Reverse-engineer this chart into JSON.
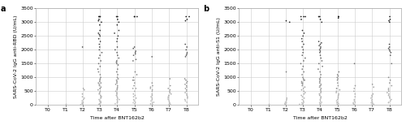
{
  "panel_a_label": "a",
  "panel_b_label": "b",
  "xlabel": "Time after BNT162b2",
  "ylabel_a": "SARS-CoV-2 IgG anti-RBD (U/mL)",
  "ylabel_b": "SARS-CoV-2 IgG anti-S1 (U/mL)",
  "timepoints": [
    "T0",
    "T1",
    "T2",
    "T3",
    "T4",
    "T5",
    "T6",
    "T7",
    "T8"
  ],
  "ylim": [
    0,
    3500
  ],
  "yticks": [
    0,
    500,
    1000,
    1500,
    2000,
    2500,
    3000,
    3500
  ],
  "panel_a": {
    "T0": [],
    "T1": [
      50
    ],
    "T2": [
      2100,
      600,
      550,
      400,
      300,
      250,
      200,
      150,
      100,
      80,
      50,
      30,
      10,
      5
    ],
    "T3": [
      3200,
      3200,
      3200,
      3100,
      3050,
      3000,
      2900,
      2700,
      2600,
      2550,
      2500,
      2400,
      2300,
      2200,
      2100,
      2000,
      1900,
      1800,
      1700,
      1600,
      1500,
      1400,
      1300,
      1200,
      1100,
      1000,
      950,
      900,
      850,
      800,
      750,
      700,
      650,
      600,
      550,
      500,
      450,
      400,
      350,
      300,
      250,
      200,
      150,
      100,
      80,
      50,
      30,
      10,
      5,
      130,
      300,
      600,
      800
    ],
    "T4": [
      3200,
      3200,
      3100,
      3000,
      2900,
      2700,
      2600,
      2500,
      2400,
      2300,
      2100,
      2000,
      1900,
      1800,
      1700,
      1600,
      1550,
      1500,
      1450,
      1300,
      1200,
      1100,
      1000,
      950,
      900,
      850,
      800,
      750,
      700,
      650,
      600,
      550,
      500,
      450,
      400,
      350,
      300,
      250,
      200,
      150,
      100,
      80,
      50,
      200,
      600
    ],
    "T5": [
      3200,
      3200,
      3200,
      2100,
      2050,
      1950,
      1900,
      1850,
      1800,
      1650,
      1600,
      1200,
      1100,
      1000,
      900,
      800,
      700,
      600,
      500,
      400,
      350,
      300,
      250,
      200,
      150,
      100,
      80,
      50,
      600,
      900
    ],
    "T6": [
      1750,
      800,
      700,
      650,
      600,
      550,
      500,
      400,
      350,
      300,
      250,
      200,
      150,
      100,
      80,
      50,
      30,
      10
    ],
    "T7": [
      950,
      700,
      600,
      550,
      500,
      450,
      400,
      350,
      300,
      250,
      200,
      150,
      100,
      80,
      50,
      30,
      10
    ],
    "T8": [
      3200,
      3200,
      3100,
      3050,
      2200,
      2100,
      2000,
      1900,
      1850,
      1800,
      1750,
      950,
      900,
      850,
      800,
      750,
      700,
      650,
      600,
      550,
      500,
      450,
      400,
      350,
      300,
      250,
      200,
      150,
      100
    ]
  },
  "panel_b": {
    "T0": [],
    "T1": [
      50
    ],
    "T2": [
      3050,
      3000,
      1200,
      250,
      200,
      150,
      100,
      80,
      50,
      30,
      10,
      5
    ],
    "T3": [
      3200,
      3200,
      3200,
      3100,
      2700,
      2600,
      2500,
      2400,
      2300,
      2200,
      2100,
      2000,
      1900,
      1800,
      1700,
      1600,
      1500,
      1400,
      1300,
      1200,
      1100,
      1000,
      950,
      900,
      850,
      800,
      750,
      700,
      650,
      600,
      550,
      500,
      450,
      400,
      350,
      300,
      250,
      200,
      150,
      100,
      80,
      50,
      30,
      10,
      5,
      800,
      900
    ],
    "T4": [
      3200,
      3200,
      3100,
      3000,
      2300,
      2250,
      2200,
      2150,
      2100,
      2050,
      2000,
      1950,
      1900,
      1800,
      1700,
      1600,
      1500,
      1400,
      1300,
      1200,
      1100,
      1000,
      950,
      900,
      850,
      800,
      750,
      700,
      650,
      600,
      550,
      500,
      450,
      400,
      350,
      300,
      250,
      200,
      150,
      100,
      80,
      50,
      30,
      700
    ],
    "T5": [
      3200,
      3200,
      3150,
      1200,
      1100,
      1050,
      1000,
      950,
      900,
      800,
      700,
      600,
      550,
      500,
      450,
      400,
      350,
      300,
      250,
      200,
      150,
      100,
      80,
      50,
      30,
      600
    ],
    "T6": [
      1500,
      700,
      600,
      500,
      400,
      300,
      200,
      150,
      100,
      80,
      50,
      30,
      10
    ],
    "T7": [
      750,
      650,
      400,
      350,
      300,
      250,
      200,
      150,
      100,
      80,
      50,
      30,
      10
    ],
    "T8": [
      3200,
      3100,
      3050,
      3000,
      2200,
      2100,
      2050,
      2000,
      1950,
      1900,
      1800,
      1500,
      1000,
      900,
      800,
      700,
      600,
      550,
      500,
      450,
      400,
      350,
      300,
      250,
      200,
      150,
      100,
      80
    ]
  },
  "dot_size": 1.5,
  "jitter_std": 0.06,
  "bg_color": "#ffffff",
  "grid_color": "#cccccc",
  "tick_label_fontsize": 4.5,
  "axis_label_fontsize": 4.5,
  "panel_label_fontsize": 7
}
